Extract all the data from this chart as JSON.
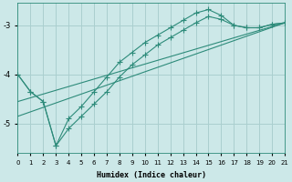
{
  "xlabel": "Humidex (Indice chaleur)",
  "bg_color": "#cce8e8",
  "grid_color": "#aacfcf",
  "line_color": "#2d8b7a",
  "xlim": [
    0,
    21
  ],
  "ylim": [
    -5.6,
    -2.55
  ],
  "yticks": [
    -5,
    -4,
    -3
  ],
  "xticks": [
    0,
    1,
    2,
    3,
    4,
    5,
    6,
    7,
    8,
    9,
    10,
    11,
    12,
    13,
    14,
    15,
    16,
    17,
    18,
    19,
    20,
    21
  ],
  "series1_x": [
    0,
    1,
    2,
    3,
    4,
    5,
    6,
    7,
    8,
    9,
    10,
    11,
    12,
    13,
    14,
    15,
    16,
    17,
    18,
    19,
    20,
    21
  ],
  "series1_y": [
    -4.0,
    -4.35,
    -4.55,
    -5.45,
    -4.9,
    -4.65,
    -4.35,
    -4.05,
    -3.75,
    -3.55,
    -3.35,
    -3.2,
    -3.05,
    -2.9,
    -2.75,
    -2.68,
    -2.8,
    -3.0,
    -3.05,
    -3.05,
    -2.98,
    -2.95
  ],
  "series2_x": [
    0,
    1,
    2,
    3,
    4,
    5,
    6,
    7,
    8,
    9,
    10,
    11,
    12,
    13,
    14,
    15,
    16,
    17,
    18,
    19,
    20,
    21
  ],
  "series2_y": [
    -4.0,
    -4.35,
    -4.55,
    -5.45,
    -5.1,
    -4.85,
    -4.6,
    -4.35,
    -4.05,
    -3.8,
    -3.6,
    -3.4,
    -3.25,
    -3.1,
    -2.95,
    -2.82,
    -2.88,
    -3.0,
    -3.05,
    -3.05,
    -2.98,
    -2.95
  ],
  "series3_x": [
    0,
    21
  ],
  "series3_y": [
    -4.55,
    -2.95
  ],
  "series4_x": [
    0,
    21
  ],
  "series4_y": [
    -4.85,
    -2.95
  ]
}
